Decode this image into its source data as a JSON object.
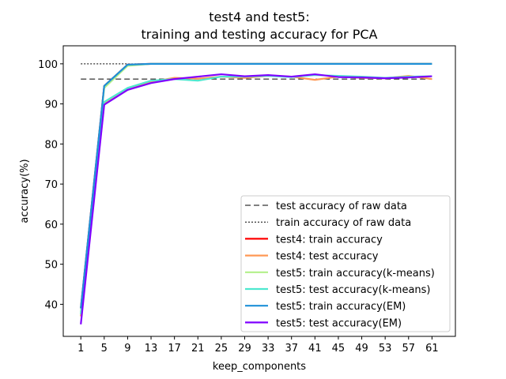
{
  "chart_data": {
    "type": "line",
    "title_line1": "test4 and test5:",
    "title_line2": "training and testing accuracy for PCA",
    "xlabel": "keep_components",
    "ylabel": "accuracy(%)",
    "xlim": [
      -2,
      65
    ],
    "ylim": [
      32,
      104.5
    ],
    "x_ticks": [
      1,
      5,
      9,
      13,
      17,
      21,
      25,
      29,
      33,
      37,
      41,
      45,
      49,
      53,
      57,
      61
    ],
    "y_ticks": [
      40,
      50,
      60,
      70,
      80,
      90,
      100
    ],
    "legend_position": "lower right",
    "x": [
      1,
      5,
      9,
      13,
      17,
      21,
      25,
      29,
      33,
      37,
      41,
      45,
      49,
      53,
      57,
      61
    ],
    "reference_lines": [
      {
        "name": "test accuracy of raw data",
        "value": 96.2,
        "style": "dashed",
        "color": "#000000"
      },
      {
        "name": "train accuracy of raw data",
        "value": 100.0,
        "style": "dotted",
        "color": "#000000"
      }
    ],
    "series": [
      {
        "name": "test4: train accuracy",
        "color": "#ff0000",
        "values": [
          39,
          94.5,
          99.8,
          100,
          100,
          100,
          100,
          100,
          100,
          100,
          100,
          100,
          100,
          100,
          100,
          100
        ]
      },
      {
        "name": "test4: test accuracy",
        "color": "#ff9955",
        "values": [
          37,
          90,
          93.5,
          95.5,
          96.5,
          96.3,
          96.8,
          96.5,
          97.0,
          96.8,
          96.0,
          96.8,
          96.5,
          96.4,
          97.0,
          96.2
        ]
      },
      {
        "name": "test5: train accuracy(k-means)",
        "color": "#b3f08a",
        "values": [
          38,
          94,
          99.5,
          100,
          100,
          100,
          100,
          100,
          100,
          100,
          100,
          100,
          100,
          100,
          100,
          100
        ]
      },
      {
        "name": "test5: test accuracy(k-means)",
        "color": "#4de8cf",
        "values": [
          37.5,
          90.5,
          94,
          95.8,
          96.2,
          95.8,
          96.8,
          96.8,
          97.0,
          96.7,
          97.2,
          97.0,
          96.8,
          96.5,
          96.8,
          96.9
        ]
      },
      {
        "name": "test5: train accuracy(EM)",
        "color": "#1e90d8",
        "values": [
          39,
          94.5,
          99.8,
          100,
          100,
          100,
          100,
          100,
          100,
          100,
          100,
          100,
          100,
          100,
          100,
          100
        ]
      },
      {
        "name": "test5: test accuracy(EM)",
        "color": "#7f00ff",
        "values": [
          35,
          89.8,
          93.5,
          95.2,
          96.2,
          96.8,
          97.4,
          96.9,
          97.2,
          96.8,
          97.4,
          96.7,
          96.6,
          96.4,
          96.6,
          96.9
        ]
      }
    ]
  }
}
